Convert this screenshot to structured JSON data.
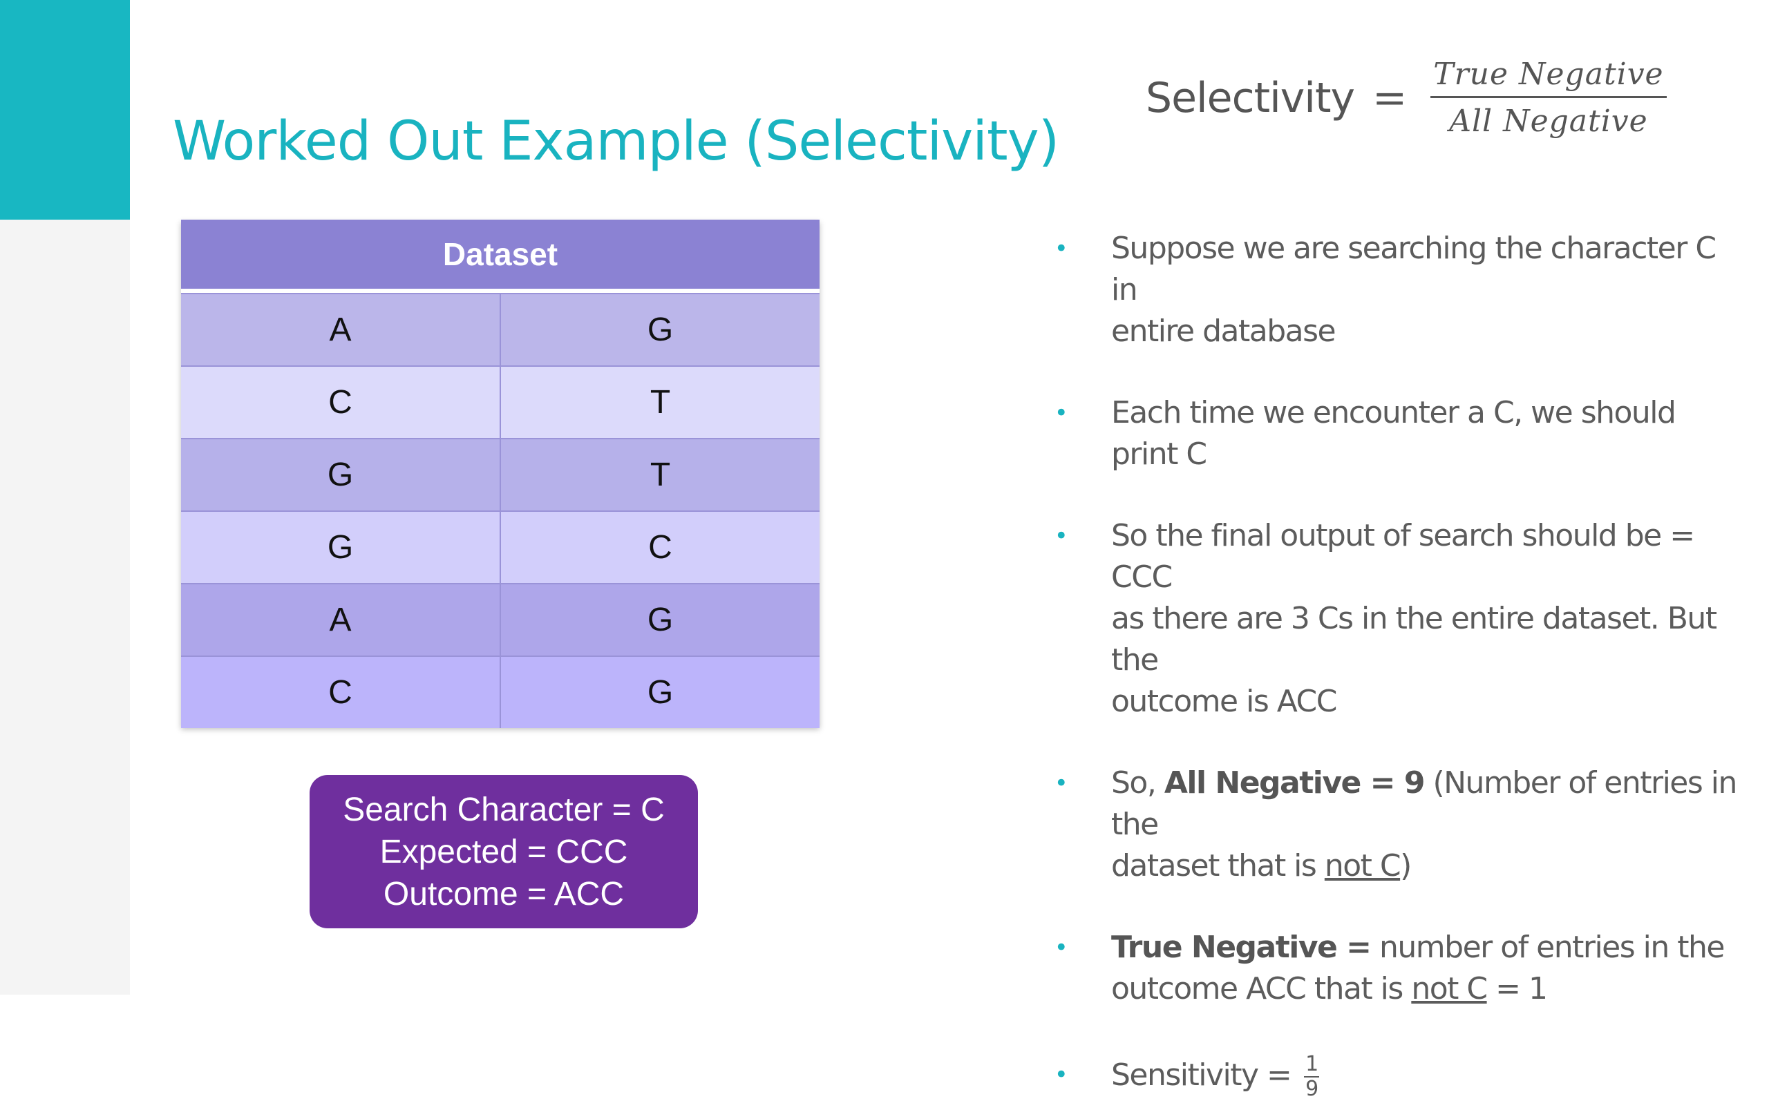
{
  "slide": {
    "title": "Worked Out Example (Selectivity)"
  },
  "formula": {
    "lhs": "Selectivity",
    "equals": "=",
    "numerator": "True Negative",
    "denominator": "All Negative"
  },
  "dataset": {
    "header": "Dataset",
    "rows": [
      [
        "A",
        "G"
      ],
      [
        "C",
        "T"
      ],
      [
        "G",
        "T"
      ],
      [
        "G",
        "C"
      ],
      [
        "A",
        "G"
      ],
      [
        "C",
        "G"
      ]
    ]
  },
  "search_box": {
    "line1": "Search Character = C",
    "line2": "Expected = CCC",
    "line3": "Outcome = ACC"
  },
  "bullets": {
    "b1_line1": "Suppose we are searching the character C in",
    "b1_line2": "entire database",
    "b2": "Each time we encounter a C, we should print C",
    "b3_line1": "So the final output of search should be = CCC",
    "b3_line2": "as there are 3 Cs in the entire dataset. But the",
    "b3_line3": "outcome is ACC",
    "b4_prefix": "So, ",
    "b4_bold": "All Negative = 9",
    "b4_rest": " (Number of entries in the",
    "b4_line2_prefix": "dataset that is ",
    "b4_line2_underline": "not C",
    "b4_line2_suffix": ")",
    "b5_bold": "True Negative =",
    "b5_rest": " number of entries in the",
    "b5_line2_prefix": "outcome ACC that is ",
    "b5_line2_underline": "not C",
    "b5_line2_suffix": " = 1",
    "b6_prefix": "Sensitivity = ",
    "b6_num": "1",
    "b6_den": "9"
  },
  "colors": {
    "accent": "#19b3c0",
    "table_header": "#8b82d3",
    "search_box": "#6f2f9e"
  }
}
